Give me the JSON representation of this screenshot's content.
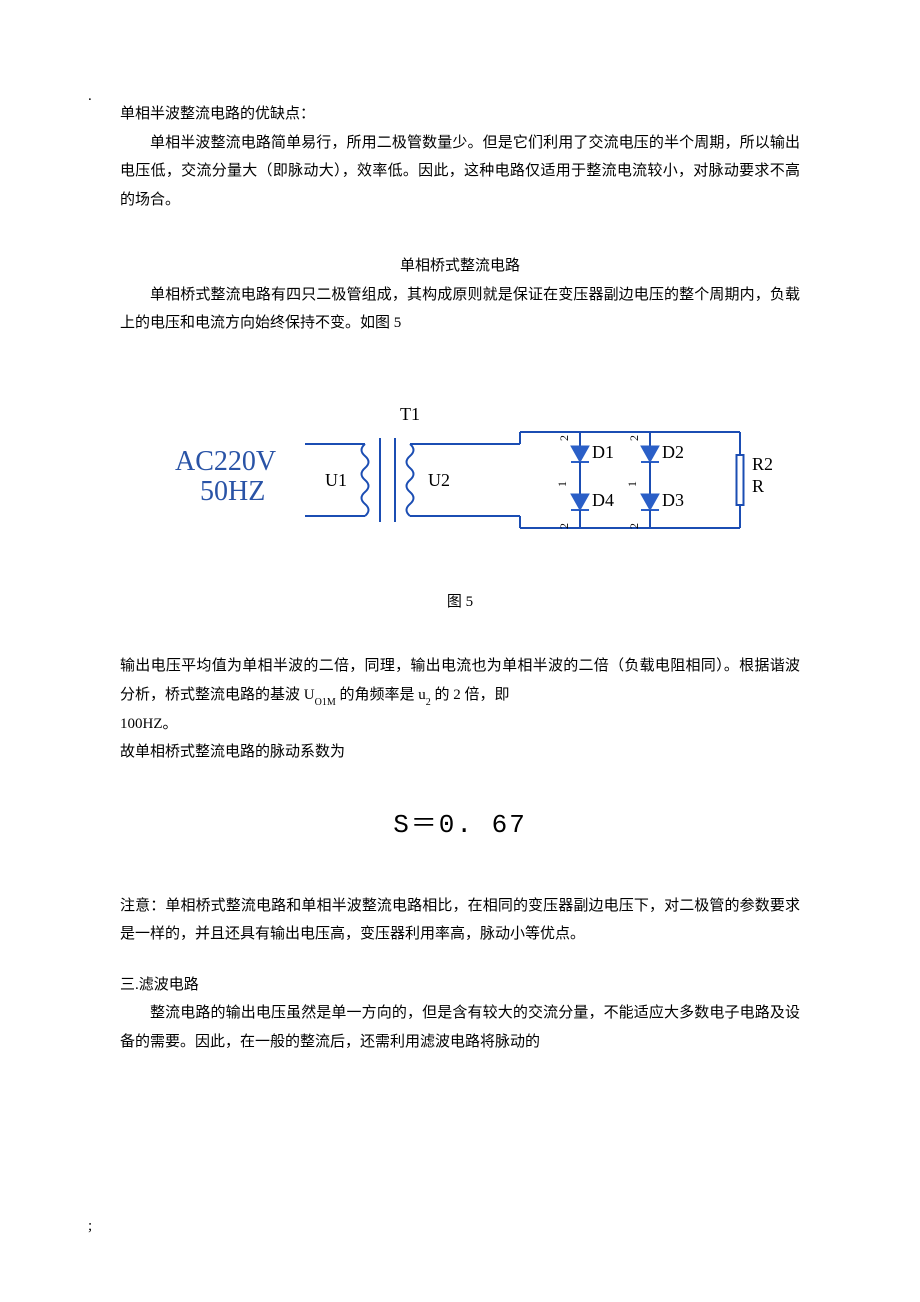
{
  "marks": {
    "top_dot": ".",
    "bot_mark": ";"
  },
  "section1": {
    "head": "单相半波整流电路的优缺点：",
    "p1": "单相半波整流电路简单易行，所用二极管数量少。但是它们利用了交流电压的半个周期，所以输出电压低，交流分量大（即脉动大），效率低。因此，这种电路仅适用于整流电流较小，对脉动要求不高的场合。"
  },
  "section2": {
    "title": "单相桥式整流电路",
    "p1": "单相桥式整流电路有四只二极管组成，其构成原则就是保证在变压器副边电压的整个周期内，负载上的电压和电流方向始终保持不变。如图 5"
  },
  "circuit": {
    "type": "circuit-diagram",
    "ac_label_line1": "AC220V",
    "ac_label_line2": "50HZ",
    "t_label": "T1",
    "u1": "U1",
    "u2": "U2",
    "d1": "D1",
    "d2": "D2",
    "d3": "D3",
    "d4": "D4",
    "r2": "R2",
    "r": "R",
    "left_top_num": "2",
    "right_top_num": "2",
    "left_mid_num": "1",
    "right_mid_num": "1",
    "left_bot_num": "2",
    "right_bot_num": "2",
    "colors": {
      "ac_text": "#2953a6",
      "black_text": "#000000",
      "wire": "#1b4db3",
      "diode_fill": "#2a5fc7",
      "resistor": "#1b4db3"
    },
    "font": {
      "ac_size": 28,
      "ac_family": "Times New Roman, serif",
      "label_size": 18,
      "small_size": 12
    },
    "line_width": 2
  },
  "figcap": "图 5",
  "analysis": {
    "p1a": "输出电压平均值为单相半波的二倍，同理，输出电流也为单相半波的二倍（负载电阻相同）。根据谐波分析，桥式整流电路的基波 ",
    "sym_u01m": "U",
    "sym_u01m_sub": "O1M",
    "p1b": " 的角频率是 ",
    "sym_u2": "u",
    "sym_u2_sub": "2",
    "p1c": " 的 2 倍，即",
    "p2": "100HZ。",
    "p3": "故单相桥式整流电路的脉动系数为",
    "formula": "S＝0. 67"
  },
  "note": {
    "p": "注意：单相桥式整流电路和单相半波整流电路相比，在相同的变压器副边电压下，对二极管的参数要求是一样的，并且还具有输出电压高，变压器利用率高，脉动小等优点。"
  },
  "section3": {
    "head": "三.滤波电路",
    "p1": "整流电路的输出电压虽然是单一方向的，但是含有较大的交流分量，不能适应大多数电子电路及设备的需要。因此，在一般的整流后，还需利用滤波电路将脉动的"
  }
}
